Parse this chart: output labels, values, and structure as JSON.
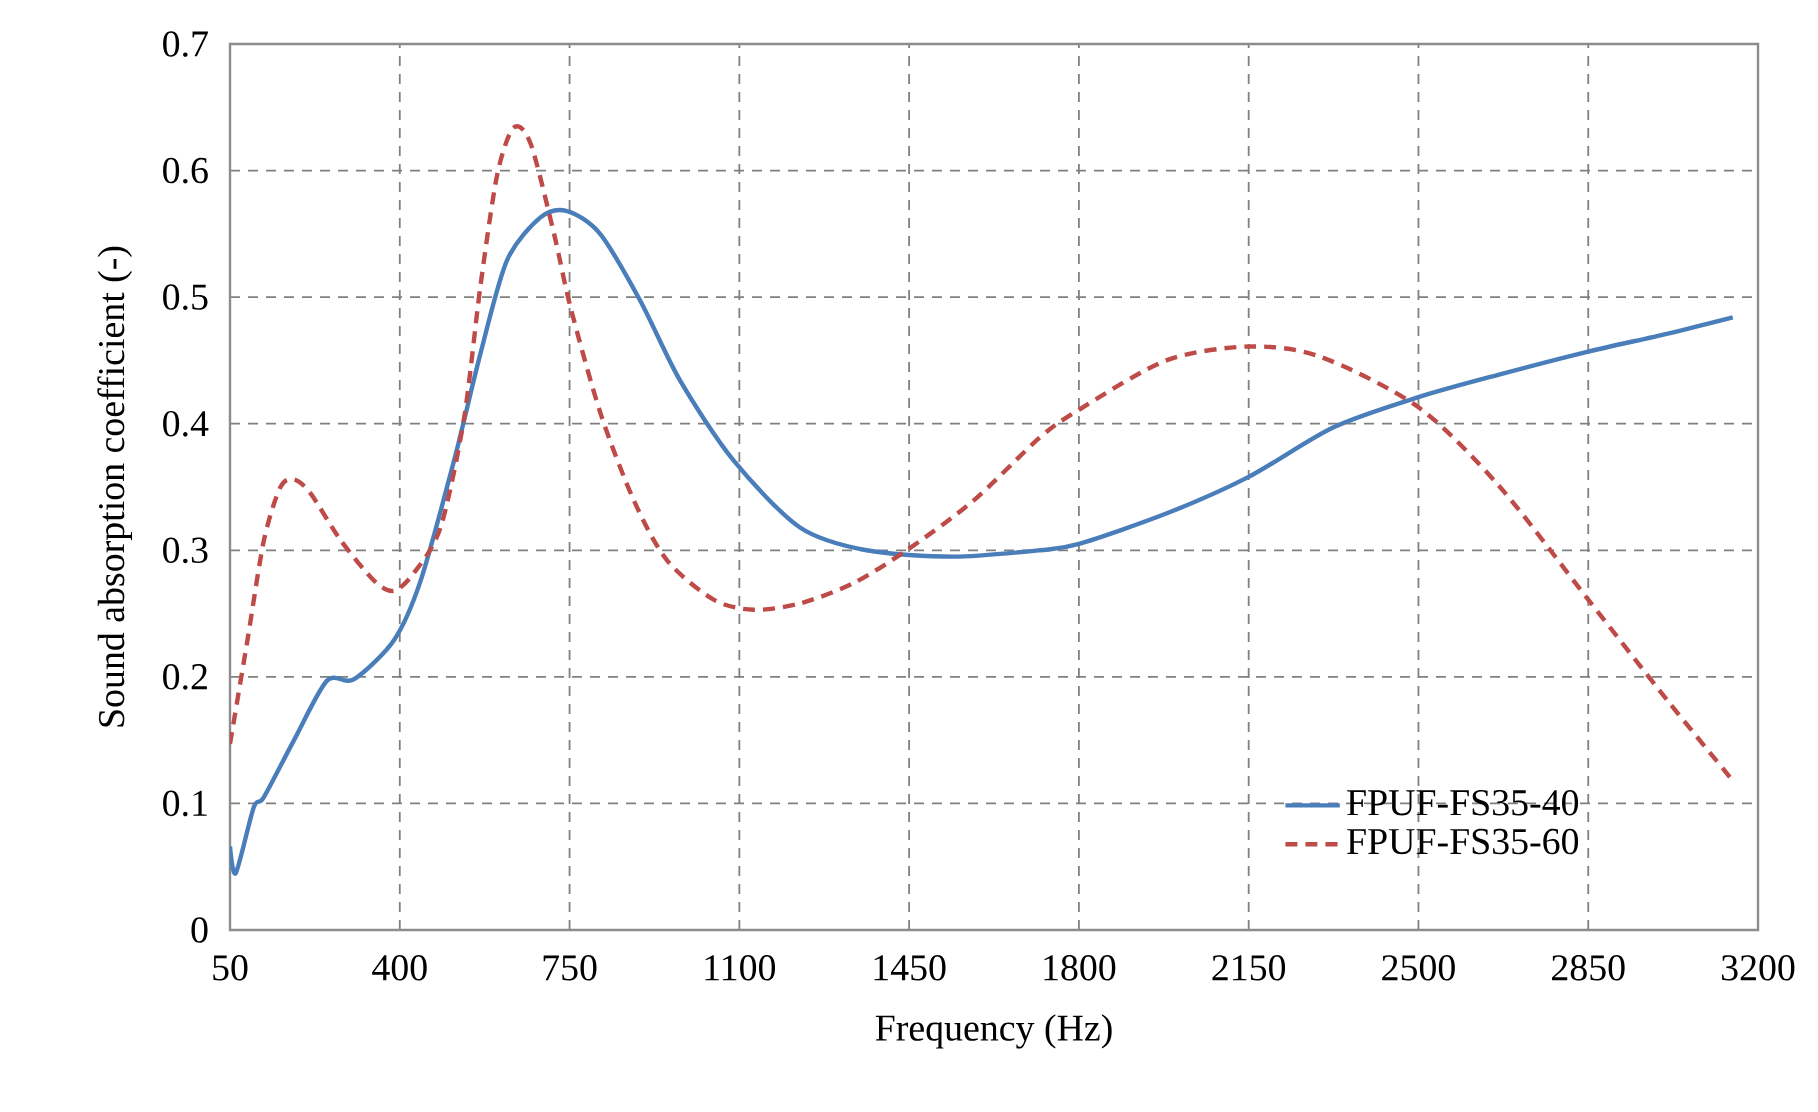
{
  "chart_data": {
    "type": "line",
    "xlabel": "Frequency (Hz)",
    "ylabel": "Sound absorption coefficient (-)",
    "xlim": [
      50,
      3200
    ],
    "xticks": [
      50,
      400,
      750,
      1100,
      1450,
      1800,
      2150,
      2500,
      2850,
      3200
    ],
    "ylim": [
      0,
      0.7
    ],
    "yticks": [
      0,
      0.1,
      0.2,
      0.3,
      0.4,
      0.5,
      0.6,
      0.7
    ],
    "grid": true,
    "legend": "bottom right",
    "marker": "none",
    "series": [
      {
        "name": "FPUF-FS35-40",
        "color": "#4a7ebb",
        "line_style": "solid",
        "x": [
          50,
          62,
          99,
          120,
          182,
          250,
          305,
          388,
          443,
          512,
          566,
          621,
          690,
          745,
          813,
          896,
          978,
          1088,
          1225,
          1362,
          1541,
          1719,
          1800,
          1980,
          2150,
          2324,
          2500,
          2668,
          2850,
          3012,
          3148
        ],
        "values": [
          0.066,
          0.045,
          0.097,
          0.105,
          0.15,
          0.197,
          0.198,
          0.229,
          0.276,
          0.371,
          0.455,
          0.529,
          0.563,
          0.568,
          0.55,
          0.497,
          0.434,
          0.371,
          0.318,
          0.3,
          0.295,
          0.3,
          0.305,
          0.329,
          0.358,
          0.397,
          0.421,
          0.439,
          0.457,
          0.471,
          0.484
        ]
      },
      {
        "name": "FPUF-FS35-60",
        "color": "#be4b48",
        "line_style": "dashed",
        "x": [
          50,
          86,
          120,
          154,
          182,
          216,
          278,
          347,
          388,
          429,
          484,
          532,
          566,
          601,
          635,
          670,
          718,
          752,
          814,
          883,
          951,
          1047,
          1129,
          1225,
          1335,
          1445,
          1582,
          1719,
          1800,
          1980,
          2150,
          2297,
          2500,
          2668,
          2850,
          3012,
          3148
        ],
        "values": [
          0.147,
          0.229,
          0.308,
          0.35,
          0.356,
          0.345,
          0.308,
          0.276,
          0.268,
          0.282,
          0.318,
          0.403,
          0.508,
          0.597,
          0.634,
          0.621,
          0.55,
          0.492,
          0.408,
          0.339,
          0.292,
          0.261,
          0.253,
          0.258,
          0.274,
          0.3,
          0.339,
          0.389,
          0.411,
          0.45,
          0.461,
          0.453,
          0.413,
          0.35,
          0.261,
          0.182,
          0.118
        ]
      }
    ]
  }
}
